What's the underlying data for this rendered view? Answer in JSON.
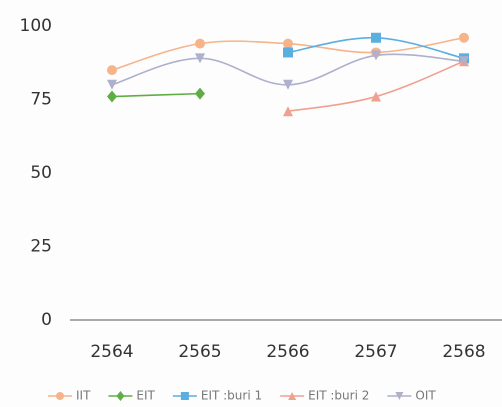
{
  "chart_data": {
    "type": "line",
    "categories": [
      "2564",
      "2565",
      "2566",
      "2567",
      "2568"
    ],
    "ylim": [
      0,
      100
    ],
    "yticks": [
      0,
      25,
      50,
      75,
      100
    ],
    "grid": false,
    "legend": "bottom",
    "series": [
      {
        "name": "IIT",
        "color": "#f5b48a",
        "marker": "circle",
        "values": [
          85,
          94,
          94,
          91,
          96
        ]
      },
      {
        "name": "EIT",
        "color": "#5fae45",
        "marker": "diamond",
        "values": [
          76,
          77,
          null,
          null,
          null
        ]
      },
      {
        "name": "EIT :buri 1",
        "color": "#5aaee0",
        "marker": "square",
        "values": [
          null,
          null,
          91,
          96,
          89
        ]
      },
      {
        "name": "EIT :buri 2",
        "color": "#f0a090",
        "marker": "triangle",
        "values": [
          null,
          null,
          71,
          76,
          88
        ]
      },
      {
        "name": "OIT",
        "color": "#aeb0cc",
        "marker": "triangle-down",
        "values": [
          80,
          89,
          80,
          90,
          88
        ]
      }
    ]
  }
}
